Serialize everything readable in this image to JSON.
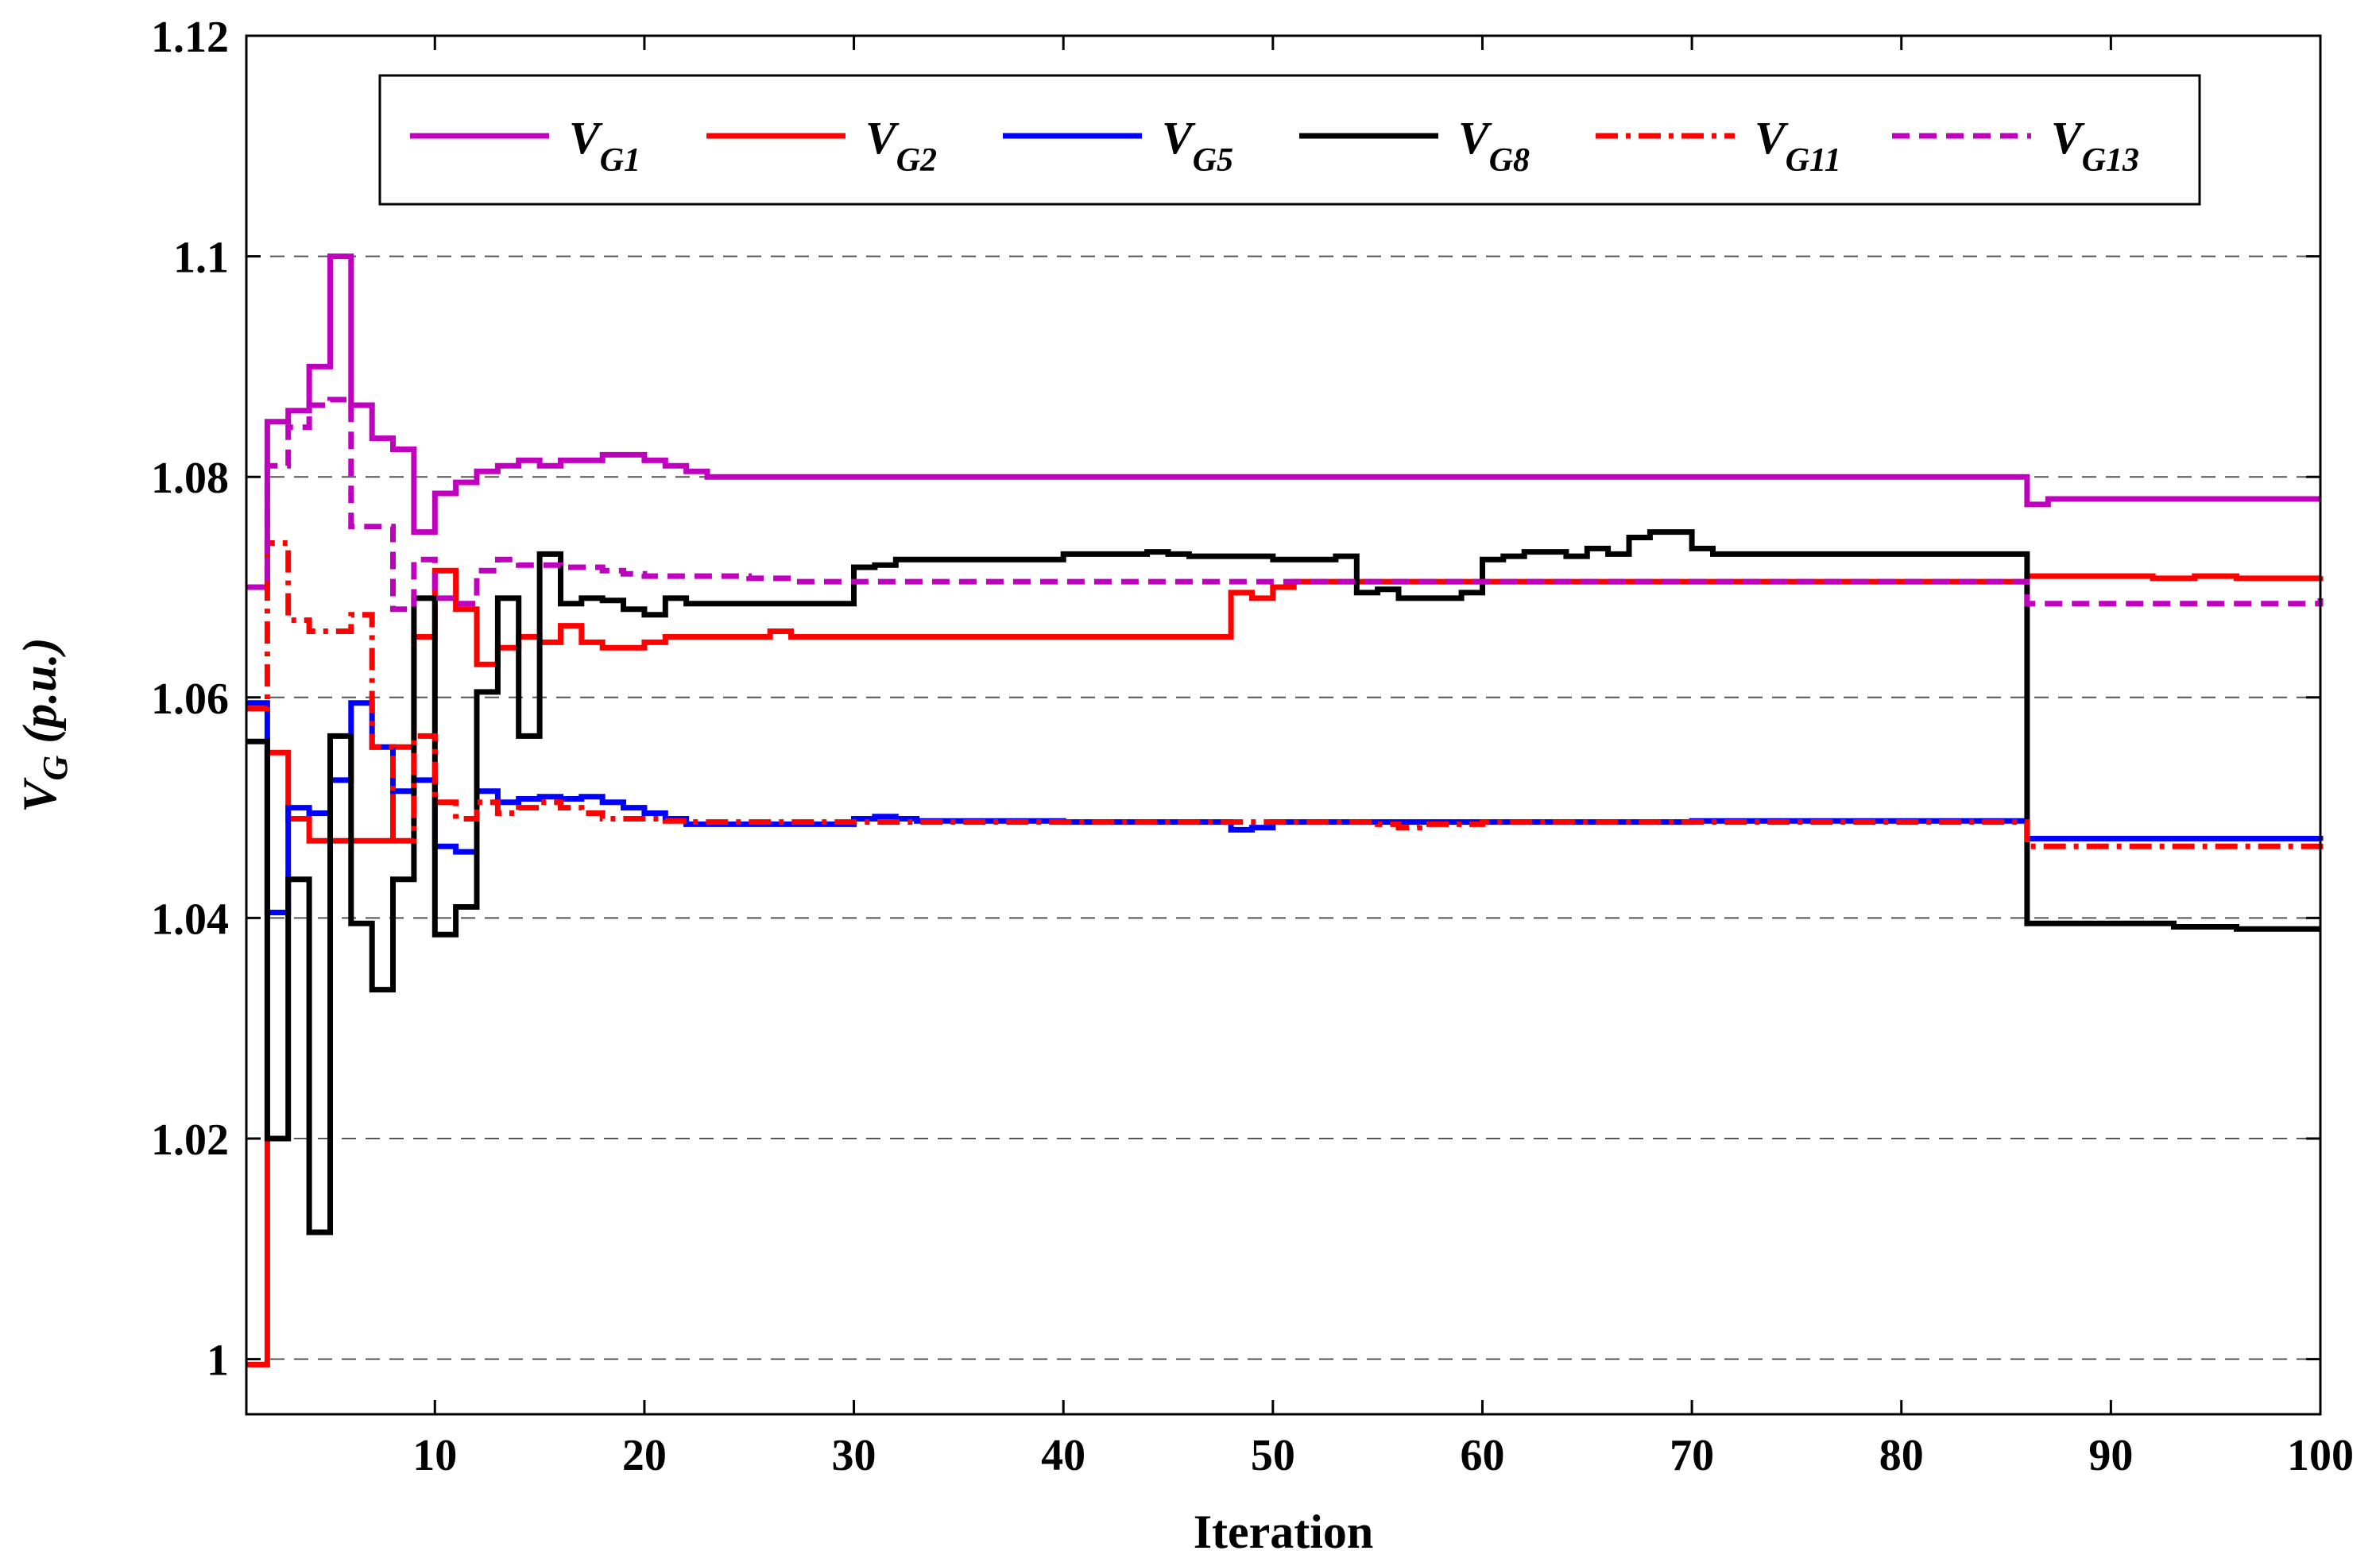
{
  "chart_data": {
    "type": "line",
    "title": "",
    "xlabel": "Iteration",
    "ylabel": {
      "main": "V",
      "sub": "G",
      "unit": " (p.u.)"
    },
    "xlim": [
      1,
      100
    ],
    "ylim": [
      0.995,
      1.12
    ],
    "xticks": [
      10,
      20,
      30,
      40,
      50,
      60,
      70,
      80,
      90,
      100
    ],
    "yticks": [
      1,
      1.02,
      1.04,
      1.06,
      1.08,
      1.1,
      1.12
    ],
    "yticklabels": [
      "1",
      "1.02",
      "1.04",
      "1.06",
      "1.08",
      "1.1",
      "1.12"
    ],
    "grid": {
      "y": true,
      "style": "dashed",
      "at": [
        1,
        1.02,
        1.04,
        1.06,
        1.08,
        1.1
      ]
    },
    "legend": "top, horizontal",
    "series": [
      {
        "name": "V",
        "sub": "G1",
        "color": "#bf00bf",
        "dash": "solid",
        "x": [
          1,
          2,
          3,
          4,
          5,
          6,
          7,
          8,
          9,
          10,
          11,
          12,
          13,
          14,
          15,
          16,
          17,
          18,
          19,
          20,
          21,
          22,
          23,
          30,
          40,
          50,
          60,
          70,
          80,
          86,
          87,
          88,
          100
        ],
        "y": [
          1.07,
          1.085,
          1.086,
          1.09,
          1.1,
          1.0865,
          1.0835,
          1.0825,
          1.075,
          1.0785,
          1.0795,
          1.0805,
          1.081,
          1.0815,
          1.081,
          1.0815,
          1.0815,
          1.082,
          1.082,
          1.0815,
          1.081,
          1.0805,
          1.08,
          1.08,
          1.08,
          1.08,
          1.08,
          1.08,
          1.08,
          1.0775,
          1.078,
          1.078,
          1.078
        ]
      },
      {
        "name": "V",
        "sub": "G2",
        "color": "#ff0000",
        "dash": "solid",
        "x": [
          1,
          2,
          3,
          4,
          5,
          6,
          7,
          8,
          9,
          10,
          11,
          12,
          13,
          14,
          15,
          16,
          17,
          18,
          19,
          20,
          21,
          22,
          23,
          26,
          27,
          40,
          48,
          49,
          50,
          51,
          52,
          86,
          90,
          92,
          94,
          96,
          100
        ],
        "y": [
          0.9995,
          1.055,
          1.049,
          1.047,
          1.047,
          1.047,
          1.047,
          1.0555,
          1.0655,
          1.0715,
          1.068,
          1.063,
          1.0645,
          1.0655,
          1.065,
          1.0665,
          1.065,
          1.0645,
          1.0645,
          1.065,
          1.0655,
          1.0655,
          1.0655,
          1.066,
          1.0655,
          1.0655,
          1.0695,
          1.069,
          1.07,
          1.0705,
          1.0705,
          1.071,
          1.071,
          1.0708,
          1.071,
          1.0708,
          1.071
        ]
      },
      {
        "name": "V",
        "sub": "G5",
        "color": "#0000ff",
        "dash": "solid",
        "x": [
          1,
          2,
          3,
          4,
          5,
          6,
          7,
          8,
          9,
          10,
          11,
          12,
          13,
          14,
          15,
          16,
          17,
          18,
          19,
          20,
          21,
          22,
          23,
          30,
          31,
          32,
          33,
          40,
          48,
          49,
          50,
          51,
          60,
          70,
          80,
          86,
          100
        ],
        "y": [
          1.0595,
          1.0405,
          1.05,
          1.0495,
          1.0525,
          1.0595,
          1.0555,
          1.0515,
          1.0525,
          1.0465,
          1.046,
          1.0515,
          1.0505,
          1.0508,
          1.051,
          1.0508,
          1.051,
          1.0505,
          1.05,
          1.0495,
          1.049,
          1.0485,
          1.0485,
          1.049,
          1.0492,
          1.049,
          1.0488,
          1.0487,
          1.048,
          1.0482,
          1.0487,
          1.0487,
          1.0487,
          1.0488,
          1.0488,
          1.0472,
          1.047
        ]
      },
      {
        "name": "V",
        "sub": "G8",
        "color": "#000000",
        "dash": "solid",
        "x": [
          1,
          2,
          3,
          4,
          5,
          6,
          7,
          8,
          9,
          10,
          11,
          12,
          13,
          14,
          15,
          16,
          17,
          18,
          19,
          20,
          21,
          22,
          23,
          30,
          31,
          32,
          33,
          40,
          44,
          45,
          46,
          50,
          53,
          54,
          55,
          56,
          57,
          58,
          59,
          60,
          61,
          62,
          64,
          65,
          66,
          67,
          68,
          69,
          70,
          71,
          72,
          80,
          86,
          90,
          93,
          96,
          100
        ],
        "y": [
          1.056,
          1.02,
          1.0435,
          1.0115,
          1.0565,
          1.0395,
          1.0335,
          1.0435,
          1.069,
          1.0385,
          1.041,
          1.0605,
          1.069,
          1.0565,
          1.073,
          1.0685,
          1.069,
          1.0688,
          1.068,
          1.0675,
          1.069,
          1.0685,
          1.0685,
          1.0718,
          1.072,
          1.0725,
          1.0725,
          1.073,
          1.0732,
          1.073,
          1.0728,
          1.0725,
          1.0728,
          1.0695,
          1.0698,
          1.069,
          1.069,
          1.069,
          1.0695,
          1.0725,
          1.0728,
          1.0732,
          1.0728,
          1.0735,
          1.073,
          1.0745,
          1.075,
          1.075,
          1.0735,
          1.073,
          1.073,
          1.073,
          1.0395,
          1.0395,
          1.0392,
          1.039,
          1.039
        ]
      },
      {
        "name": "V",
        "sub": "G11",
        "color": "#ff0000",
        "dash": "dashdot",
        "x": [
          1,
          2,
          3,
          4,
          5,
          6,
          7,
          8,
          9,
          10,
          11,
          12,
          13,
          14,
          15,
          16,
          17,
          18,
          19,
          20,
          21,
          22,
          23,
          30,
          40,
          50,
          55,
          56,
          57,
          60,
          70,
          80,
          86,
          100
        ],
        "y": [
          1.059,
          1.074,
          1.067,
          1.066,
          1.066,
          1.0675,
          1.0555,
          1.047,
          1.0565,
          1.0505,
          1.049,
          1.0505,
          1.0495,
          1.05,
          1.0505,
          1.05,
          1.0495,
          1.049,
          1.049,
          1.049,
          1.0488,
          1.0487,
          1.0487,
          1.0487,
          1.0487,
          1.0487,
          1.0485,
          1.0482,
          1.0485,
          1.0487,
          1.0487,
          1.0487,
          1.0465,
          1.0462
        ]
      },
      {
        "name": "V",
        "sub": "G13",
        "color": "#bf00bf",
        "dash": "dashed",
        "x": [
          1,
          2,
          3,
          4,
          5,
          6,
          7,
          8,
          9,
          10,
          11,
          12,
          13,
          14,
          15,
          16,
          17,
          18,
          19,
          20,
          21,
          22,
          23,
          24,
          25,
          26,
          27,
          28,
          29,
          30,
          40,
          50,
          60,
          70,
          80,
          86,
          100
        ],
        "y": [
          1.07,
          1.081,
          1.0845,
          1.0865,
          1.087,
          1.0755,
          1.0755,
          1.068,
          1.0725,
          1.069,
          1.0685,
          1.0715,
          1.0725,
          1.072,
          1.072,
          1.0718,
          1.0718,
          1.0715,
          1.0712,
          1.071,
          1.071,
          1.071,
          1.071,
          1.071,
          1.0708,
          1.0708,
          1.0705,
          1.0705,
          1.0705,
          1.0705,
          1.0705,
          1.0705,
          1.0705,
          1.0705,
          1.0705,
          1.0685,
          1.069
        ]
      }
    ]
  }
}
